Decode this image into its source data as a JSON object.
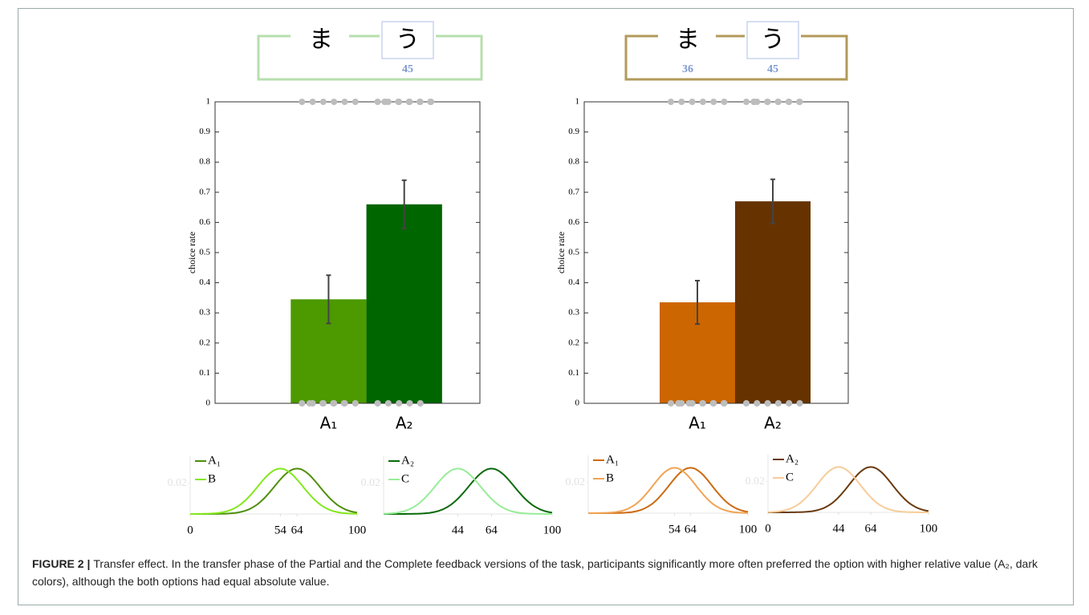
{
  "chart_data": [
    {
      "type": "bar",
      "ylabel": "choice rate",
      "categories": [
        "A₁",
        "A₂"
      ],
      "values": [
        0.345,
        0.66
      ],
      "errors": [
        0.08,
        0.08
      ],
      "colors": [
        "#4c9900",
        "#006600"
      ],
      "ylim": [
        0,
        1
      ],
      "yticks": [
        0,
        0.1,
        0.2,
        0.3,
        0.4,
        0.5,
        0.6,
        0.7,
        0.8,
        0.9,
        1
      ],
      "choices": [
        [
          1,
          1,
          1,
          1,
          1,
          1,
          0,
          0,
          0,
          0,
          0,
          0,
          0,
          0,
          0,
          0
        ],
        [
          1,
          1,
          1,
          1,
          1,
          1,
          1,
          1,
          1,
          1,
          1,
          1,
          0,
          0,
          0,
          0,
          0
        ]
      ],
      "frame_color": "#b7dfae",
      "stimuli": [
        {
          "symbol": "ま"
        },
        {
          "symbol": "う",
          "value": 45
        }
      ]
    },
    {
      "type": "bar",
      "ylabel": "choice rate",
      "categories": [
        "A₁",
        "A₂"
      ],
      "values": [
        0.335,
        0.67
      ],
      "errors": [
        0.072,
        0.073
      ],
      "colors": [
        "#cc6600",
        "#663300"
      ],
      "ylim": [
        0,
        1
      ],
      "yticks": [
        0,
        0.1,
        0.2,
        0.3,
        0.4,
        0.5,
        0.6,
        0.7,
        0.8,
        0.9,
        1
      ],
      "choices": [
        [
          1,
          1,
          1,
          1,
          1,
          1,
          0,
          0,
          0,
          0,
          0,
          0,
          0,
          0,
          0,
          0,
          0,
          0,
          0
        ],
        [
          1,
          1,
          1,
          1,
          1,
          1,
          1,
          1,
          1,
          1,
          1,
          1,
          0,
          0,
          0,
          0,
          0,
          0
        ]
      ],
      "frame_color": "#b39a5a",
      "stimuli": [
        {
          "symbol": "ま",
          "value": 36
        },
        {
          "symbol": "う",
          "value": 45
        }
      ]
    },
    {
      "type": "density",
      "xlim": [
        0,
        100
      ],
      "xticks": [
        0,
        54,
        64,
        100
      ],
      "ylim": [
        0,
        0.035
      ],
      "yticks": [
        0.02
      ],
      "series": [
        {
          "name": "A₁",
          "color": "#4e8f0a",
          "mean": 64,
          "sd": 13.5
        },
        {
          "name": "B",
          "color": "#84e81e",
          "mean": 54,
          "sd": 13.5
        }
      ]
    },
    {
      "type": "density",
      "xlim": [
        0,
        100
      ],
      "xticks": [
        44,
        64,
        100
      ],
      "ylim": [
        0,
        0.035
      ],
      "yticks": [
        0.02
      ],
      "series": [
        {
          "name": "A₂",
          "color": "#0a6a0a",
          "mean": 64,
          "sd": 13.5
        },
        {
          "name": "C",
          "color": "#98ec98",
          "mean": 44,
          "sd": 13.5
        }
      ]
    },
    {
      "type": "density",
      "xlim": [
        0,
        100
      ],
      "xticks": [
        54,
        64,
        100
      ],
      "ylim": [
        0,
        0.035
      ],
      "yticks": [
        0.02
      ],
      "series": [
        {
          "name": "A₁",
          "color": "#cc6a10",
          "mean": 64,
          "sd": 13.5
        },
        {
          "name": "B",
          "color": "#f0a455",
          "mean": 54,
          "sd": 13.5
        }
      ]
    },
    {
      "type": "density",
      "xlim": [
        0,
        100
      ],
      "xticks": [
        0,
        44,
        64,
        100
      ],
      "ylim": [
        0,
        0.035
      ],
      "yticks": [
        0.02
      ],
      "series": [
        {
          "name": "A₂",
          "color": "#6a3a0e",
          "mean": 64,
          "sd": 13.5
        },
        {
          "name": "C",
          "color": "#f7cc98",
          "mean": 44,
          "sd": 13.5
        }
      ]
    }
  ],
  "caption": {
    "label": "FIGURE 2 |",
    "text": "Transfer effect. In the transfer phase of the Partial and the Complete feedback versions of the task, participants significantly more often preferred the option with higher relative value (A₂, dark colors), although the both options had equal absolute value."
  }
}
